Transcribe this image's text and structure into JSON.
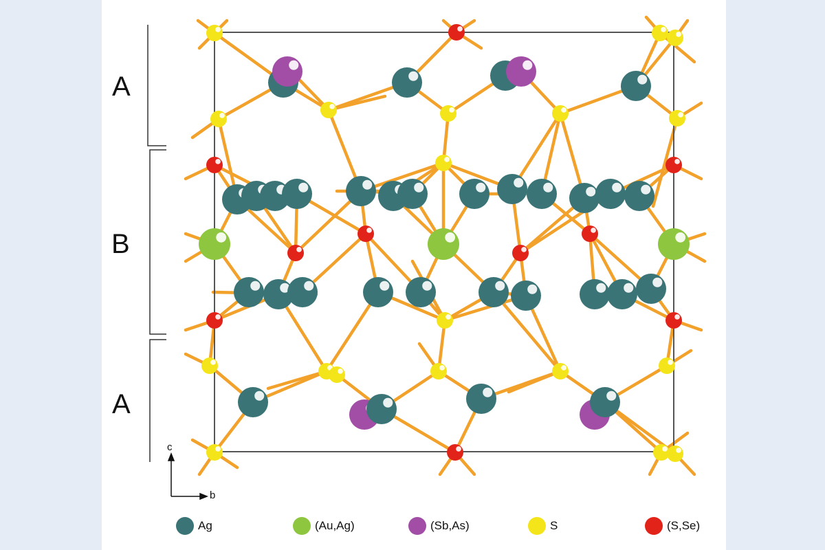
{
  "layers": [
    {
      "label": "A"
    },
    {
      "label": "B"
    },
    {
      "label": "A"
    }
  ],
  "axes": {
    "vertical": "c",
    "horizontal": "b"
  },
  "legend": [
    {
      "label": "Ag",
      "color": "#3a7476"
    },
    {
      "label": "(Au,Ag)",
      "color": "#8ec63f"
    },
    {
      "label": "(Sb,As)",
      "color": "#a24ea6"
    },
    {
      "label": "S",
      "color": "#f3e51a"
    },
    {
      "label": "(S,Se)",
      "color": "#e2231a"
    }
  ],
  "bond_color": "#f2a12a"
}
